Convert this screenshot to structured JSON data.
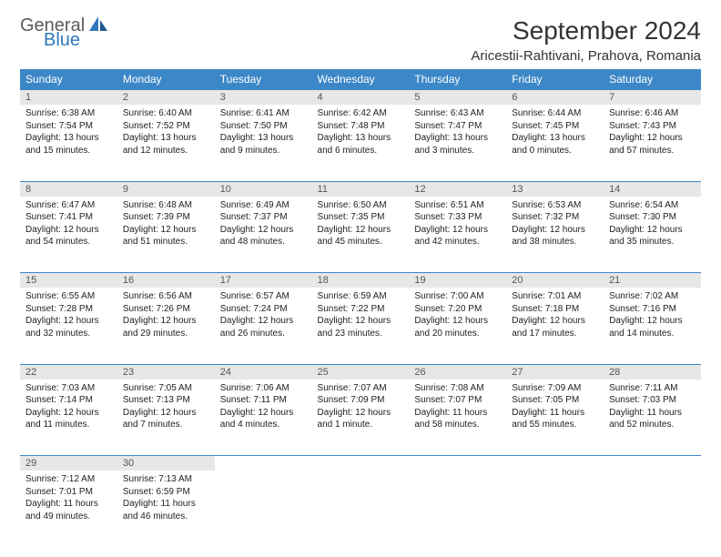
{
  "logo": {
    "general": "General",
    "blue": "Blue"
  },
  "title": "September 2024",
  "location": "Aricestii-Rahtivani, Prahova, Romania",
  "colors": {
    "header_bg": "#3c87c7",
    "header_text": "#ffffff",
    "daynum_bg": "#e7e7e7",
    "border": "#3c87c7",
    "logo_gray": "#5a5a5a",
    "logo_blue": "#2f78bd"
  },
  "weekdays": [
    "Sunday",
    "Monday",
    "Tuesday",
    "Wednesday",
    "Thursday",
    "Friday",
    "Saturday"
  ],
  "weeks": [
    [
      {
        "n": "1",
        "sr": "Sunrise: 6:38 AM",
        "ss": "Sunset: 7:54 PM",
        "dl1": "Daylight: 13 hours",
        "dl2": "and 15 minutes."
      },
      {
        "n": "2",
        "sr": "Sunrise: 6:40 AM",
        "ss": "Sunset: 7:52 PM",
        "dl1": "Daylight: 13 hours",
        "dl2": "and 12 minutes."
      },
      {
        "n": "3",
        "sr": "Sunrise: 6:41 AM",
        "ss": "Sunset: 7:50 PM",
        "dl1": "Daylight: 13 hours",
        "dl2": "and 9 minutes."
      },
      {
        "n": "4",
        "sr": "Sunrise: 6:42 AM",
        "ss": "Sunset: 7:48 PM",
        "dl1": "Daylight: 13 hours",
        "dl2": "and 6 minutes."
      },
      {
        "n": "5",
        "sr": "Sunrise: 6:43 AM",
        "ss": "Sunset: 7:47 PM",
        "dl1": "Daylight: 13 hours",
        "dl2": "and 3 minutes."
      },
      {
        "n": "6",
        "sr": "Sunrise: 6:44 AM",
        "ss": "Sunset: 7:45 PM",
        "dl1": "Daylight: 13 hours",
        "dl2": "and 0 minutes."
      },
      {
        "n": "7",
        "sr": "Sunrise: 6:46 AM",
        "ss": "Sunset: 7:43 PM",
        "dl1": "Daylight: 12 hours",
        "dl2": "and 57 minutes."
      }
    ],
    [
      {
        "n": "8",
        "sr": "Sunrise: 6:47 AM",
        "ss": "Sunset: 7:41 PM",
        "dl1": "Daylight: 12 hours",
        "dl2": "and 54 minutes."
      },
      {
        "n": "9",
        "sr": "Sunrise: 6:48 AM",
        "ss": "Sunset: 7:39 PM",
        "dl1": "Daylight: 12 hours",
        "dl2": "and 51 minutes."
      },
      {
        "n": "10",
        "sr": "Sunrise: 6:49 AM",
        "ss": "Sunset: 7:37 PM",
        "dl1": "Daylight: 12 hours",
        "dl2": "and 48 minutes."
      },
      {
        "n": "11",
        "sr": "Sunrise: 6:50 AM",
        "ss": "Sunset: 7:35 PM",
        "dl1": "Daylight: 12 hours",
        "dl2": "and 45 minutes."
      },
      {
        "n": "12",
        "sr": "Sunrise: 6:51 AM",
        "ss": "Sunset: 7:33 PM",
        "dl1": "Daylight: 12 hours",
        "dl2": "and 42 minutes."
      },
      {
        "n": "13",
        "sr": "Sunrise: 6:53 AM",
        "ss": "Sunset: 7:32 PM",
        "dl1": "Daylight: 12 hours",
        "dl2": "and 38 minutes."
      },
      {
        "n": "14",
        "sr": "Sunrise: 6:54 AM",
        "ss": "Sunset: 7:30 PM",
        "dl1": "Daylight: 12 hours",
        "dl2": "and 35 minutes."
      }
    ],
    [
      {
        "n": "15",
        "sr": "Sunrise: 6:55 AM",
        "ss": "Sunset: 7:28 PM",
        "dl1": "Daylight: 12 hours",
        "dl2": "and 32 minutes."
      },
      {
        "n": "16",
        "sr": "Sunrise: 6:56 AM",
        "ss": "Sunset: 7:26 PM",
        "dl1": "Daylight: 12 hours",
        "dl2": "and 29 minutes."
      },
      {
        "n": "17",
        "sr": "Sunrise: 6:57 AM",
        "ss": "Sunset: 7:24 PM",
        "dl1": "Daylight: 12 hours",
        "dl2": "and 26 minutes."
      },
      {
        "n": "18",
        "sr": "Sunrise: 6:59 AM",
        "ss": "Sunset: 7:22 PM",
        "dl1": "Daylight: 12 hours",
        "dl2": "and 23 minutes."
      },
      {
        "n": "19",
        "sr": "Sunrise: 7:00 AM",
        "ss": "Sunset: 7:20 PM",
        "dl1": "Daylight: 12 hours",
        "dl2": "and 20 minutes."
      },
      {
        "n": "20",
        "sr": "Sunrise: 7:01 AM",
        "ss": "Sunset: 7:18 PM",
        "dl1": "Daylight: 12 hours",
        "dl2": "and 17 minutes."
      },
      {
        "n": "21",
        "sr": "Sunrise: 7:02 AM",
        "ss": "Sunset: 7:16 PM",
        "dl1": "Daylight: 12 hours",
        "dl2": "and 14 minutes."
      }
    ],
    [
      {
        "n": "22",
        "sr": "Sunrise: 7:03 AM",
        "ss": "Sunset: 7:14 PM",
        "dl1": "Daylight: 12 hours",
        "dl2": "and 11 minutes."
      },
      {
        "n": "23",
        "sr": "Sunrise: 7:05 AM",
        "ss": "Sunset: 7:13 PM",
        "dl1": "Daylight: 12 hours",
        "dl2": "and 7 minutes."
      },
      {
        "n": "24",
        "sr": "Sunrise: 7:06 AM",
        "ss": "Sunset: 7:11 PM",
        "dl1": "Daylight: 12 hours",
        "dl2": "and 4 minutes."
      },
      {
        "n": "25",
        "sr": "Sunrise: 7:07 AM",
        "ss": "Sunset: 7:09 PM",
        "dl1": "Daylight: 12 hours",
        "dl2": "and 1 minute."
      },
      {
        "n": "26",
        "sr": "Sunrise: 7:08 AM",
        "ss": "Sunset: 7:07 PM",
        "dl1": "Daylight: 11 hours",
        "dl2": "and 58 minutes."
      },
      {
        "n": "27",
        "sr": "Sunrise: 7:09 AM",
        "ss": "Sunset: 7:05 PM",
        "dl1": "Daylight: 11 hours",
        "dl2": "and 55 minutes."
      },
      {
        "n": "28",
        "sr": "Sunrise: 7:11 AM",
        "ss": "Sunset: 7:03 PM",
        "dl1": "Daylight: 11 hours",
        "dl2": "and 52 minutes."
      }
    ],
    [
      {
        "n": "29",
        "sr": "Sunrise: 7:12 AM",
        "ss": "Sunset: 7:01 PM",
        "dl1": "Daylight: 11 hours",
        "dl2": "and 49 minutes."
      },
      {
        "n": "30",
        "sr": "Sunrise: 7:13 AM",
        "ss": "Sunset: 6:59 PM",
        "dl1": "Daylight: 11 hours",
        "dl2": "and 46 minutes."
      },
      null,
      null,
      null,
      null,
      null
    ]
  ]
}
